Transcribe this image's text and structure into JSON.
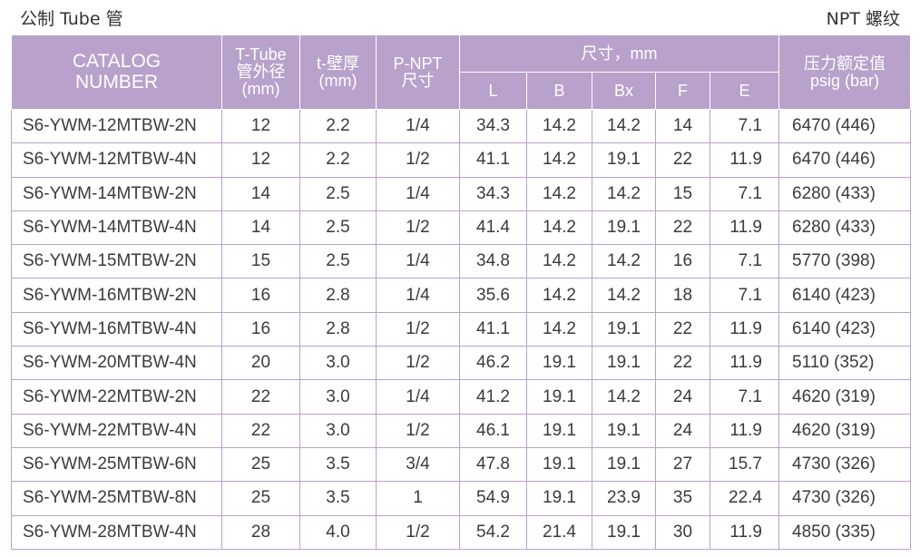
{
  "header": {
    "left": "公制 Tube 管",
    "right": "NPT 螺纹"
  },
  "columns": {
    "catalog": [
      "CATALOG",
      "NUMBER"
    ],
    "tube": [
      "T-Tube",
      "管外径",
      "(mm)"
    ],
    "wall": [
      "t-壁厚",
      "(mm)"
    ],
    "npt": [
      "P-NPT",
      "尺寸"
    ],
    "dims_group": "尺寸，mm",
    "dims": [
      "L",
      "B",
      "Bx",
      "F",
      "E"
    ],
    "pressure": [
      "压力额定值",
      "psig (bar)"
    ]
  },
  "rows": [
    {
      "catalog": "S6-YWM-12MTBW-2N",
      "tube": "12",
      "wall": "2.2",
      "npt": "1/4",
      "L": "34.3",
      "B": "14.2",
      "Bx": "14.2",
      "F": "14",
      "E": "7.1",
      "psig": "6470 (446)"
    },
    {
      "catalog": "S6-YWM-12MTBW-4N",
      "tube": "12",
      "wall": "2.2",
      "npt": "1/2",
      "L": "41.1",
      "B": "14.2",
      "Bx": "19.1",
      "F": "22",
      "E": "11.9",
      "psig": "6470 (446)"
    },
    {
      "catalog": "S6-YWM-14MTBW-2N",
      "tube": "14",
      "wall": "2.5",
      "npt": "1/4",
      "L": "34.3",
      "B": "14.2",
      "Bx": "14.2",
      "F": "15",
      "E": "7.1",
      "psig": "6280 (433)"
    },
    {
      "catalog": "S6-YWM-14MTBW-4N",
      "tube": "14",
      "wall": "2.5",
      "npt": "1/2",
      "L": "41.4",
      "B": "14.2",
      "Bx": "19.1",
      "F": "22",
      "E": "11.9",
      "psig": "6280 (433)"
    },
    {
      "catalog": "S6-YWM-15MTBW-2N",
      "tube": "15",
      "wall": "2.5",
      "npt": "1/4",
      "L": "34.8",
      "B": "14.2",
      "Bx": "14.2",
      "F": "16",
      "E": "7.1",
      "psig": "5770 (398)"
    },
    {
      "catalog": "S6-YWM-16MTBW-2N",
      "tube": "16",
      "wall": "2.8",
      "npt": "1/4",
      "L": "35.6",
      "B": "14.2",
      "Bx": "14.2",
      "F": "18",
      "E": "7.1",
      "psig": "6140 (423)"
    },
    {
      "catalog": "S6-YWM-16MTBW-4N",
      "tube": "16",
      "wall": "2.8",
      "npt": "1/2",
      "L": "41.1",
      "B": "14.2",
      "Bx": "19.1",
      "F": "22",
      "E": "11.9",
      "psig": "6140 (423)"
    },
    {
      "catalog": "S6-YWM-20MTBW-4N",
      "tube": "20",
      "wall": "3.0",
      "npt": "1/2",
      "L": "46.2",
      "B": "19.1",
      "Bx": "19.1",
      "F": "22",
      "E": "11.9",
      "psig": "5110 (352)"
    },
    {
      "catalog": "S6-YWM-22MTBW-2N",
      "tube": "22",
      "wall": "3.0",
      "npt": "1/4",
      "L": "41.2",
      "B": "19.1",
      "Bx": "14.2",
      "F": "24",
      "E": "7.1",
      "psig": "4620 (319)"
    },
    {
      "catalog": "S6-YWM-22MTBW-4N",
      "tube": "22",
      "wall": "3.0",
      "npt": "1/2",
      "L": "46.1",
      "B": "19.1",
      "Bx": "19.1",
      "F": "24",
      "E": "11.9",
      "psig": "4620 (319)"
    },
    {
      "catalog": "S6-YWM-25MTBW-6N",
      "tube": "25",
      "wall": "3.5",
      "npt": "3/4",
      "L": "47.8",
      "B": "19.1",
      "Bx": "19.1",
      "F": "27",
      "E": "15.7",
      "psig": "4730 (326)"
    },
    {
      "catalog": "S6-YWM-25MTBW-8N",
      "tube": "25",
      "wall": "3.5",
      "npt": "1",
      "L": "54.9",
      "B": "19.1",
      "Bx": "23.9",
      "F": "35",
      "E": "22.4",
      "psig": "4730 (326)"
    },
    {
      "catalog": "S6-YWM-28MTBW-4N",
      "tube": "28",
      "wall": "4.0",
      "npt": "1/2",
      "L": "54.2",
      "B": "21.4",
      "Bx": "19.1",
      "F": "30",
      "E": "11.9",
      "psig": "4850 (335)"
    }
  ],
  "colors": {
    "header_bg": "#b8a1cb",
    "header_text": "#ffffff",
    "grid": "#b8a1cb"
  }
}
